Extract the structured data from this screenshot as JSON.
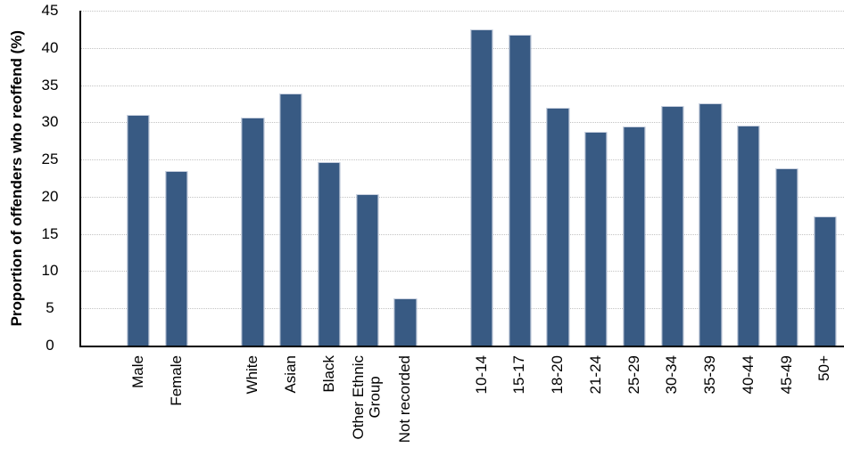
{
  "chart_data": {
    "type": "bar",
    "title": "",
    "ylabel": "Proportion of offenders who reoffend (%)",
    "xlabel": "",
    "ylim": [
      0,
      45
    ],
    "yticks": [
      0,
      5,
      10,
      15,
      20,
      25,
      30,
      35,
      40,
      45
    ],
    "grid": "horizontal-dotted",
    "legend": "none",
    "bar_color": "#385A83",
    "bar_border_color": "#c8d0df",
    "gridline_color": "#c3c3c3",
    "axis_color": "#000000",
    "groups": [
      {
        "name": "sex",
        "categories": [
          "Male",
          "Female"
        ],
        "values": [
          31.0,
          23.4
        ]
      },
      {
        "name": "ethnicity",
        "categories": [
          "White",
          "Asian",
          "Black",
          "Other Ethnic\nGroup",
          "Not recorded"
        ],
        "values": [
          30.7,
          33.9,
          24.6,
          20.4,
          6.3
        ]
      },
      {
        "name": "age_group",
        "categories": [
          "10-14",
          "15-17",
          "18-20",
          "21-24",
          "25-29",
          "30-34",
          "35-39",
          "40-44",
          "45-49",
          "50+"
        ],
        "values": [
          42.5,
          41.8,
          31.9,
          28.7,
          29.5,
          32.2,
          32.5,
          29.6,
          23.8,
          17.4
        ]
      }
    ]
  }
}
